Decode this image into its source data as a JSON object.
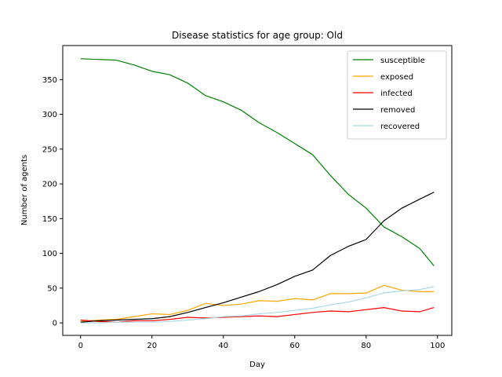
{
  "chart_data": {
    "type": "line",
    "title": "Disease statistics for age group: Old",
    "xlabel": "Day",
    "ylabel": "Number of agents",
    "xlim": [
      -5,
      104
    ],
    "ylim": [
      -18,
      399
    ],
    "xticks": [
      0,
      20,
      40,
      60,
      80,
      100
    ],
    "yticks": [
      0,
      50,
      100,
      150,
      200,
      250,
      300,
      350
    ],
    "grid": false,
    "legend_position": "top-right",
    "x": [
      0,
      5,
      10,
      15,
      20,
      25,
      30,
      35,
      40,
      45,
      50,
      55,
      60,
      65,
      70,
      75,
      80,
      85,
      90,
      95,
      99
    ],
    "series": [
      {
        "name": "susceptible",
        "color": "#008000",
        "values": [
          380,
          379,
          378,
          371,
          362,
          357,
          345,
          327,
          318,
          306,
          288,
          274,
          258,
          242,
          212,
          185,
          165,
          138,
          124,
          107,
          82
        ]
      },
      {
        "name": "exposed",
        "color": "#ffa500",
        "values": [
          2,
          4,
          5,
          9,
          13,
          12,
          18,
          28,
          25,
          27,
          32,
          31,
          35,
          33,
          42,
          42,
          43,
          54,
          47,
          45,
          45
        ]
      },
      {
        "name": "infected",
        "color": "#ff0000",
        "values": [
          4,
          2,
          1,
          3,
          3,
          5,
          8,
          7,
          8,
          9,
          10,
          9,
          12,
          15,
          17,
          16,
          19,
          22,
          17,
          16,
          22
        ]
      },
      {
        "name": "removed",
        "color": "#000000",
        "values": [
          1,
          3,
          4,
          5,
          6,
          9,
          15,
          22,
          29,
          37,
          45,
          55,
          67,
          76,
          97,
          110,
          120,
          147,
          165,
          178,
          188
        ]
      },
      {
        "name": "recovered",
        "color": "#add8e6",
        "values": [
          0,
          0,
          1,
          1,
          1,
          2,
          4,
          6,
          9,
          10,
          13,
          15,
          18,
          21,
          26,
          30,
          36,
          43,
          46,
          48,
          52
        ]
      }
    ]
  }
}
